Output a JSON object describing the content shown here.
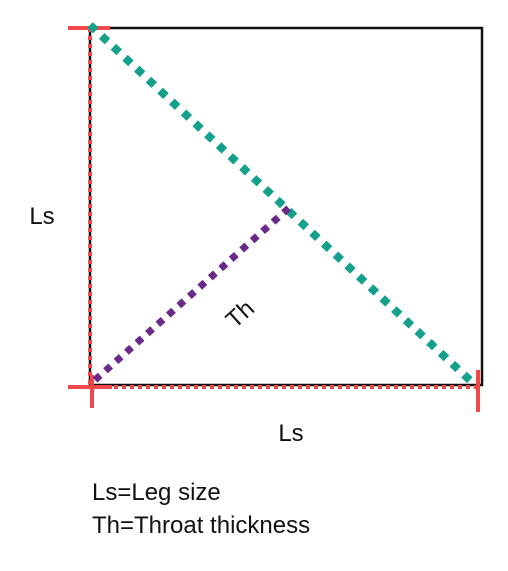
{
  "labels": {
    "left_leg": "Ls",
    "bottom_leg": "Ls",
    "throat": "Th"
  },
  "legend": [
    "Ls=Leg size",
    "Th=Throat thickness"
  ]
}
